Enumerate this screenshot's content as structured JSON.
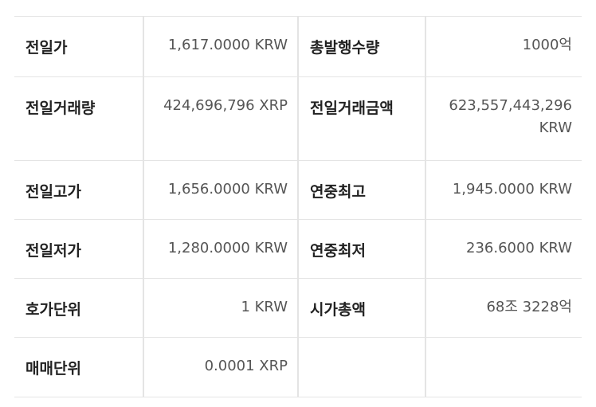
{
  "rows": [
    {
      "label1": "전일가",
      "value1": "1,617.0000 KRW",
      "label2": "총발행수량",
      "value2": "1000억"
    },
    {
      "label1": "전일거래량",
      "value1": "424,696,796 XRP",
      "label2": "전일거래금액",
      "value2": "623,557,443,296 KRW"
    },
    {
      "label1": "전일고가",
      "value1": "1,656.0000 KRW",
      "label2": "연중최고",
      "value2": "1,945.0000 KRW"
    },
    {
      "label1": "전일저가",
      "value1": "1,280.0000 KRW",
      "label2": "연중최저",
      "value2": "236.6000 KRW"
    },
    {
      "label1": "호가단위",
      "value1": "1 KRW",
      "label2": "시가총액",
      "value2": "68조 3228억"
    },
    {
      "label1": "매매단위",
      "value1": "0.0001 XRP",
      "label2": "",
      "value2": ""
    }
  ]
}
